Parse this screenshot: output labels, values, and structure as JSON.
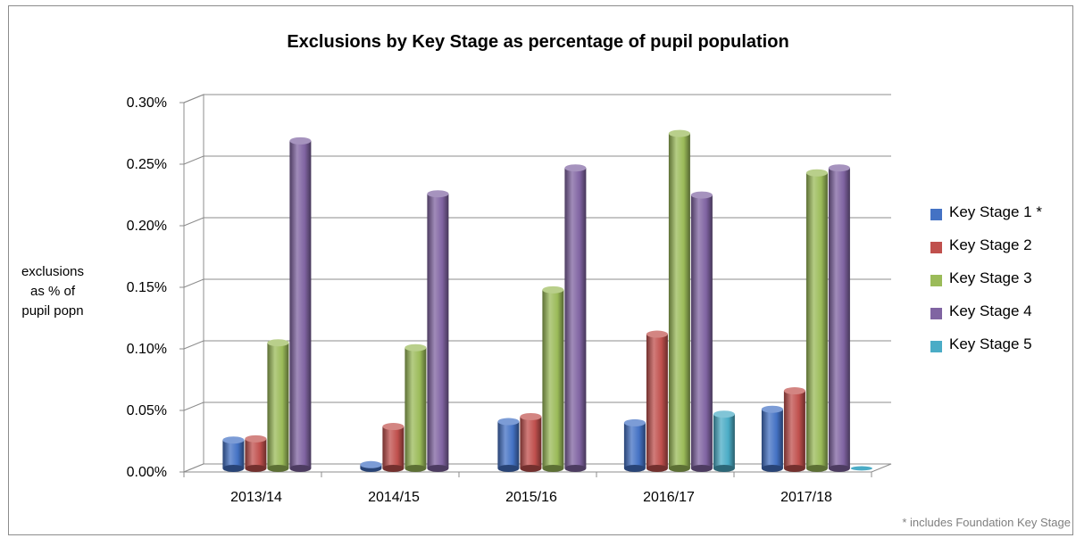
{
  "chart_data": {
    "type": "bar",
    "title": "Exclusions by Key Stage as percentage of pupil population",
    "ylabel": "exclusions as % of pupil popn",
    "ylabel_lines": [
      "exclusions",
      "as % of",
      "pupil popn"
    ],
    "xlabel": "",
    "categories": [
      "2013/14",
      "2014/15",
      "2015/16",
      "2016/17",
      "2017/18"
    ],
    "ylim": [
      0,
      0.3
    ],
    "yticks": [
      0,
      0.05,
      0.1,
      0.15,
      0.2,
      0.25,
      0.3
    ],
    "ytick_labels": [
      "0.00%",
      "0.05%",
      "0.10%",
      "0.15%",
      "0.20%",
      "0.25%",
      "0.30%"
    ],
    "grid": true,
    "legend_position": "right",
    "series": [
      {
        "name": "Key Stage 1 *",
        "color": "#4472c4",
        "values": [
          0.023,
          0.003,
          0.038,
          0.037,
          0.048
        ]
      },
      {
        "name": "Key Stage 2",
        "color": "#c0504d",
        "values": [
          0.024,
          0.034,
          0.042,
          0.109,
          0.063
        ]
      },
      {
        "name": "Key Stage 3",
        "color": "#9bbb59",
        "values": [
          0.102,
          0.098,
          0.145,
          0.272,
          0.24
        ]
      },
      {
        "name": "Key Stage 4",
        "color": "#8064a2",
        "values": [
          0.266,
          0.223,
          0.244,
          0.222,
          0.244
        ]
      },
      {
        "name": "Key Stage 5",
        "color": "#4bacc6",
        "values": [
          null,
          null,
          null,
          0.044,
          0.0
        ]
      }
    ],
    "footnote": "* includes Foundation Key Stage"
  }
}
